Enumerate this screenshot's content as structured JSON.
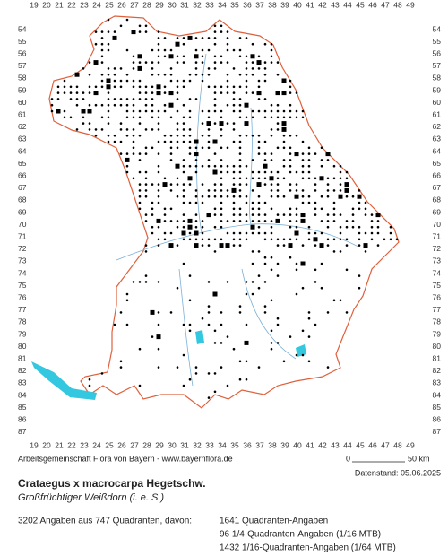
{
  "grid": {
    "columns": [
      19,
      20,
      21,
      22,
      23,
      24,
      25,
      26,
      27,
      28,
      29,
      30,
      31,
      32,
      33,
      34,
      35,
      36,
      37,
      38,
      39,
      40,
      41,
      42,
      43,
      44,
      45,
      46,
      47,
      48,
      49
    ],
    "rows": [
      54,
      55,
      56,
      57,
      58,
      59,
      60,
      61,
      62,
      63,
      64,
      65,
      66,
      67,
      68,
      69,
      70,
      71,
      72,
      73,
      74,
      75,
      76,
      77,
      78,
      79,
      80,
      81,
      82,
      83,
      84,
      85,
      86,
      87
    ]
  },
  "footer": {
    "credit": "Arbeitsgemeinschaft Flora von Bayern - www.bayernflora.de",
    "scale_start": "0",
    "scale_end": "50 km",
    "date": "Datenstand: 05.06.2025"
  },
  "species": {
    "name": "Crataegus x macrocarpa Hegetschw.",
    "common_name": "Großfrüchtiger Weißdorn (i. e. S.)"
  },
  "stats": {
    "summary": "3202 Angaben aus 747 Quadranten, davon:",
    "lines": [
      "1641 Quadranten-Angaben",
      "96 1/4-Quadranten-Angaben (1/16 MTB)",
      "1432 1/16-Quadranten-Angaben (1/64 MTB)"
    ]
  }
}
